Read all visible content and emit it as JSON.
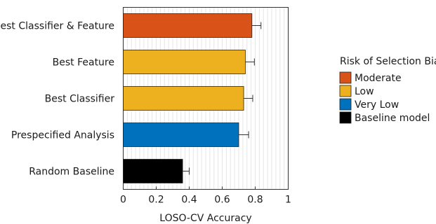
{
  "chart_data": {
    "type": "bar",
    "orientation": "horizontal",
    "categories": [
      "Best Classifier & Feature",
      "Best Feature",
      "Best Classifier",
      "Prespecified Analysis",
      "Random Baseline"
    ],
    "values": [
      0.78,
      0.74,
      0.73,
      0.7,
      0.36
    ],
    "errors": [
      0.055,
      0.055,
      0.055,
      0.06,
      0.04
    ],
    "bar_groups": [
      "Moderate",
      "Low",
      "Low",
      "Very Low",
      "Baseline model"
    ],
    "xlabel": "LOSO-CV Accuracy",
    "xlim": [
      0,
      1
    ],
    "xticks": [
      "0",
      "0.2",
      "0.4",
      "0.6",
      "0.8",
      "1"
    ],
    "grid": true,
    "legend": {
      "title": "Risk of Selection Bias",
      "placement": "right",
      "entries": [
        {
          "label": "Moderate",
          "color": "#d95319"
        },
        {
          "label": "Low",
          "color": "#edb120"
        },
        {
          "label": "Very Low",
          "color": "#0072bd"
        },
        {
          "label": "Baseline model",
          "color": "#000000"
        }
      ]
    }
  }
}
